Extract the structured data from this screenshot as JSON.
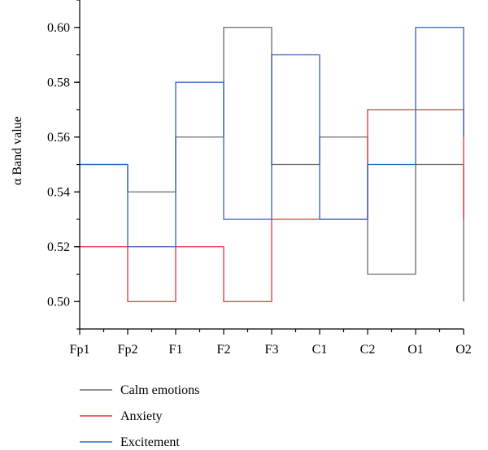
{
  "chart_data": {
    "type": "line",
    "step": true,
    "categories": [
      "Fp1",
      "Fp2",
      "F1",
      "F2",
      "F3",
      "C1",
      "C2",
      "O1",
      "O2"
    ],
    "ylabel": "α Band value",
    "xlabel": "",
    "title": "",
    "ylim": [
      0.49,
      0.61
    ],
    "yticks": [
      0.5,
      0.52,
      0.54,
      0.56,
      0.58,
      0.6
    ],
    "ytick_labels": [
      "0.50",
      "0.52",
      "0.54",
      "0.56",
      "0.58",
      "0.60"
    ],
    "grid": false,
    "legend_position": "bottom-left",
    "series": [
      {
        "name": "Calm emotions",
        "color": "#6b6b6b",
        "values": [
          0.55,
          0.54,
          0.56,
          0.6,
          0.55,
          0.56,
          0.51,
          0.55,
          0.5
        ]
      },
      {
        "name": "Anxiety",
        "color": "#e8303a",
        "values": [
          0.52,
          0.5,
          0.52,
          0.5,
          0.53,
          0.53,
          0.57,
          0.57,
          0.53
        ]
      },
      {
        "name": "Excitement",
        "color": "#2f62b8",
        "values": [
          0.55,
          0.52,
          0.58,
          0.53,
          0.59,
          0.53,
          0.55,
          0.6,
          0.56
        ]
      }
    ]
  }
}
